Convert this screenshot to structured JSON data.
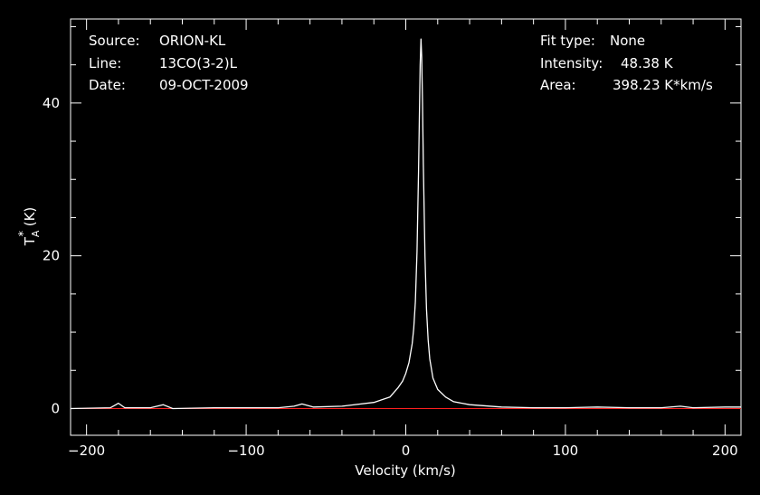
{
  "info_left": {
    "source_label": "Source:",
    "source_value": "ORION-KL",
    "line_label": "Line:",
    "line_value": "13CO(3-2)L",
    "date_label": "Date:",
    "date_value": "09-OCT-2009"
  },
  "info_right": {
    "fit_label": "Fit type:",
    "fit_value": "None",
    "intensity_label": "Intensity:",
    "intensity_value": "48.38 K",
    "area_label": "Area:",
    "area_value": "398.23 K*km/s"
  },
  "colors": {
    "background": "#000000",
    "foreground": "#ffffff",
    "baseline": "#ff2020"
  },
  "chart_data": {
    "type": "line",
    "xlabel": "Velocity (km/s)",
    "ylabel_main": "T",
    "ylabel_sup": "*",
    "ylabel_sub": "A",
    "ylabel_unit": " (K)",
    "xlim": [
      -210,
      210
    ],
    "ylim": [
      -3.5,
      51
    ],
    "x_ticks": [
      -200,
      -100,
      0,
      100,
      200
    ],
    "x_tick_labels": [
      "−200",
      "−100",
      "0",
      "100",
      "200"
    ],
    "y_ticks": [
      0,
      20,
      40
    ],
    "y_tick_labels": [
      "0",
      "20",
      "40"
    ],
    "series": [
      {
        "x": [
          -210,
          -185,
          -180,
          -176,
          -160,
          -152,
          -146,
          -120,
          -100,
          -80,
          -70,
          -65,
          -58,
          -40,
          -20,
          -10,
          -5,
          -2,
          0,
          2,
          4,
          5,
          6,
          7,
          8,
          8.5,
          9,
          9.5,
          10,
          10.5,
          11,
          12,
          13,
          14,
          15,
          17,
          20,
          25,
          30,
          40,
          60,
          80,
          100,
          120,
          140,
          160,
          172,
          180,
          200,
          210
        ],
        "y": [
          0.0,
          0.1,
          0.7,
          0.1,
          0.1,
          0.5,
          0.0,
          0.1,
          0.1,
          0.1,
          0.3,
          0.6,
          0.2,
          0.3,
          0.8,
          1.5,
          2.7,
          3.6,
          4.6,
          6.0,
          8.5,
          10.5,
          14.0,
          20.5,
          31.0,
          38.0,
          45.0,
          48.38,
          46.0,
          40.0,
          32.0,
          20.0,
          13.0,
          9.0,
          6.5,
          4.0,
          2.5,
          1.5,
          0.9,
          0.5,
          0.2,
          0.1,
          0.1,
          0.2,
          0.1,
          0.1,
          0.3,
          0.1,
          0.2,
          0.2
        ]
      }
    ],
    "baseline": 0
  }
}
